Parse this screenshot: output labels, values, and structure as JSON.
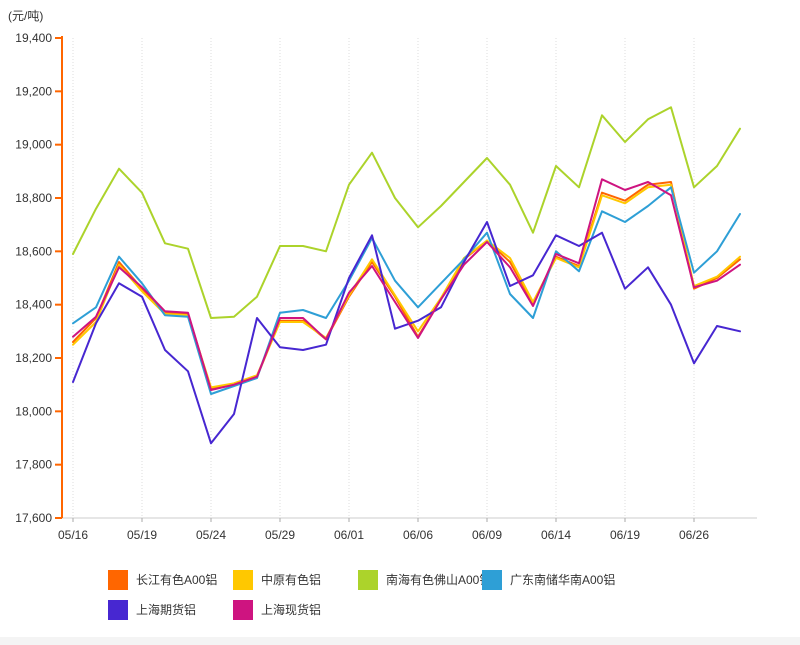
{
  "title": "(元/吨)",
  "chart_data": {
    "type": "line",
    "title": "(元/吨)",
    "grid": "vertical-dotted",
    "legend_position": "bottom",
    "y_axis": {
      "min": 17600,
      "max": 19400,
      "step": 200,
      "tick_labels": [
        "17,600",
        "17,800",
        "18,000",
        "18,200",
        "18,400",
        "18,600",
        "18,800",
        "19,000",
        "19,200",
        "19,400"
      ],
      "axis_color": "#FF6600",
      "unit_label": "(元/吨)"
    },
    "x_axis": {
      "tick_labels": [
        "05/16",
        "05/19",
        "05/24",
        "05/29",
        "06/01",
        "06/06",
        "06/09",
        "06/14",
        "06/19",
        "06/26"
      ],
      "tick_point_indices": [
        0,
        3,
        6,
        9,
        12,
        15,
        18,
        21,
        24,
        27
      ],
      "n_points": 30
    },
    "series": [
      {
        "name": "长江有色A00铝",
        "color": "#FF6600",
        "values": [
          18260,
          18350,
          18560,
          18460,
          18370,
          18365,
          18085,
          18100,
          18130,
          18340,
          18340,
          18270,
          18430,
          18560,
          18430,
          18280,
          18420,
          18570,
          18640,
          18560,
          18405,
          18580,
          18545,
          18820,
          18790,
          18850,
          18860,
          18460,
          18500,
          18570
        ]
      },
      {
        "name": "中原有色铝",
        "color": "#FFC800",
        "values": [
          18250,
          18335,
          18550,
          18450,
          18365,
          18360,
          18090,
          18105,
          18135,
          18335,
          18335,
          18275,
          18435,
          18570,
          18435,
          18300,
          18425,
          18575,
          18640,
          18575,
          18410,
          18575,
          18540,
          18810,
          18780,
          18840,
          18850,
          18470,
          18505,
          18580
        ]
      },
      {
        "name": "南海有色佛山A00铝",
        "color": "#ACD32B",
        "values": [
          18590,
          18760,
          18910,
          18820,
          18630,
          18610,
          18350,
          18355,
          18430,
          18620,
          18620,
          18600,
          18850,
          18970,
          18800,
          18690,
          18770,
          18860,
          18950,
          18850,
          18670,
          18920,
          18840,
          19110,
          19010,
          19095,
          19140,
          18840,
          18920,
          19060
        ]
      },
      {
        "name": "广东南储华南A00铝",
        "color": "#2E9FD6",
        "values": [
          18330,
          18390,
          18580,
          18480,
          18360,
          18355,
          18065,
          18095,
          18125,
          18370,
          18380,
          18350,
          18490,
          18650,
          18490,
          18390,
          18480,
          18570,
          18670,
          18440,
          18350,
          18600,
          18525,
          18750,
          18710,
          18770,
          18840,
          18520,
          18600,
          18740
        ]
      },
      {
        "name": "上海期货铝",
        "color": "#4727D1",
        "values": [
          18110,
          18330,
          18480,
          18430,
          18230,
          18150,
          17880,
          17990,
          18350,
          18240,
          18230,
          18250,
          18500,
          18660,
          18310,
          18340,
          18390,
          18560,
          18710,
          18470,
          18510,
          18660,
          18620,
          18670,
          18460,
          18540,
          18400,
          18180,
          18320,
          18300
        ]
      },
      {
        "name": "上海现货铝",
        "color": "#CE1480",
        "values": [
          18280,
          18355,
          18540,
          18465,
          18375,
          18370,
          18080,
          18100,
          18130,
          18350,
          18350,
          18270,
          18445,
          18545,
          18410,
          18275,
          18420,
          18550,
          18635,
          18540,
          18395,
          18590,
          18555,
          18870,
          18830,
          18860,
          18810,
          18465,
          18490,
          18550
        ]
      }
    ]
  }
}
